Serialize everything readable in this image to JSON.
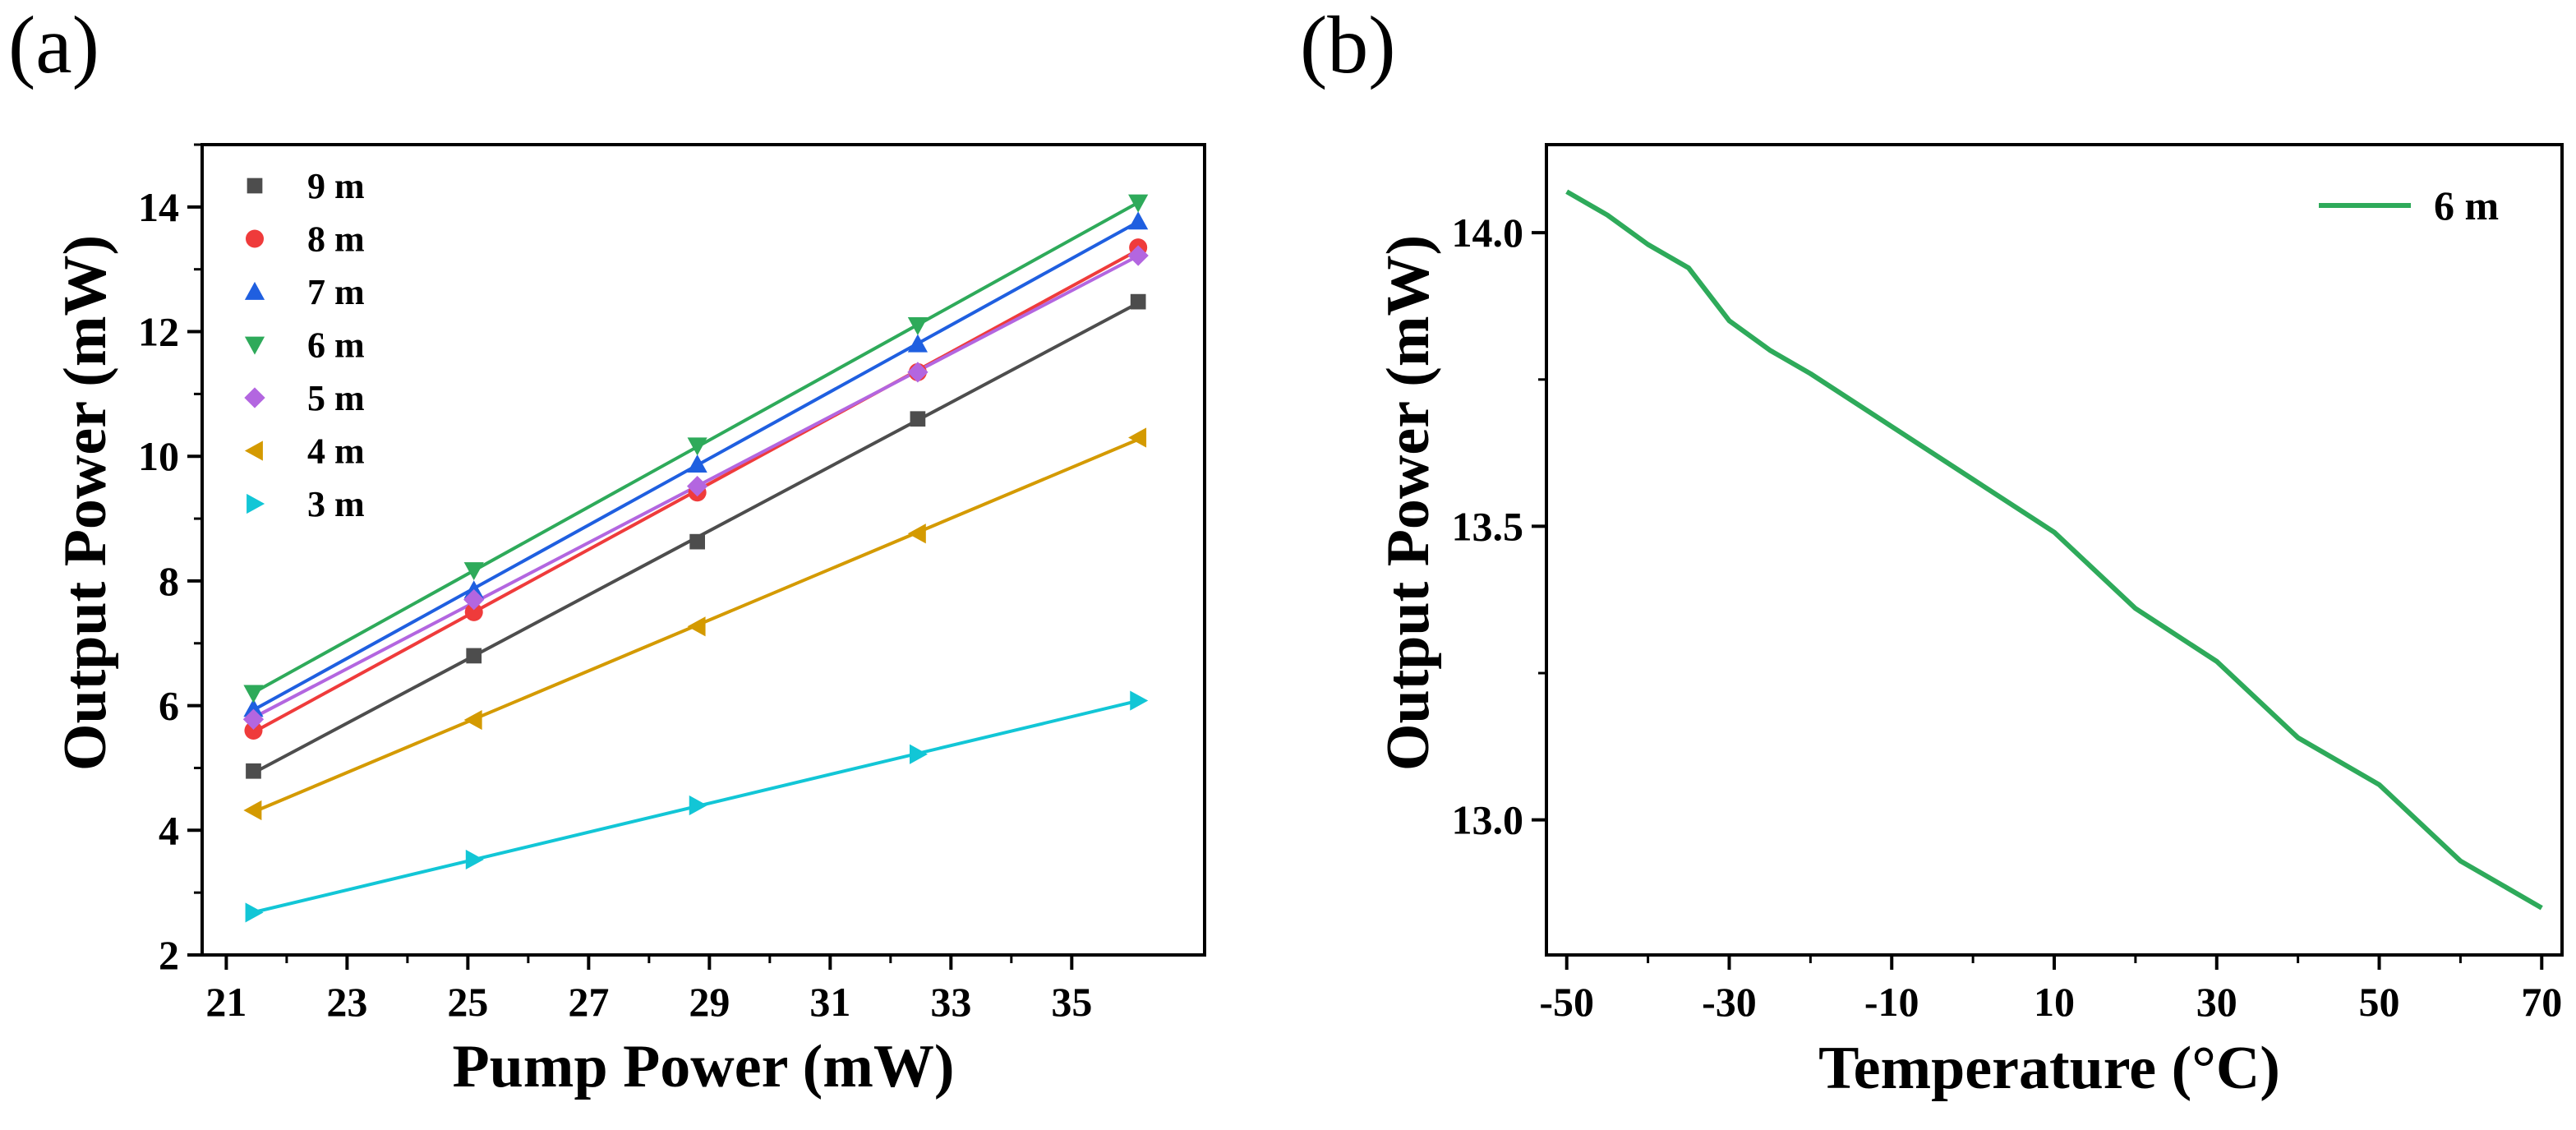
{
  "chart_data": [
    {
      "panel_label": "(a)",
      "type": "scatter",
      "title": "",
      "xlabel": "Pump Power (mW)",
      "ylabel": "Output Power (mW)",
      "xlim": [
        20.6,
        37.2
      ],
      "ylim": [
        2,
        15
      ],
      "xticks": [
        21,
        23,
        25,
        27,
        29,
        31,
        33,
        35
      ],
      "yticks": [
        2,
        4,
        6,
        8,
        10,
        12,
        14
      ],
      "x": [
        21.45,
        25.1,
        28.8,
        32.45,
        36.1
      ],
      "legend_position": "top-left",
      "fit_lines": true,
      "series": [
        {
          "name": "9 m",
          "marker": "square",
          "color": "#4d4d4d",
          "values": [
            4.95,
            6.8,
            8.63,
            10.6,
            12.48
          ]
        },
        {
          "name": "8 m",
          "marker": "circle",
          "color": "#ef3b3b",
          "values": [
            5.6,
            7.5,
            9.42,
            11.35,
            13.35
          ]
        },
        {
          "name": "7 m",
          "marker": "triangle-up",
          "color": "#1f5fe0",
          "values": [
            5.95,
            7.85,
            9.87,
            11.8,
            13.77
          ]
        },
        {
          "name": "6 m",
          "marker": "triangle-down",
          "color": "#2eaa5a",
          "values": [
            6.2,
            8.17,
            10.17,
            12.1,
            14.07
          ]
        },
        {
          "name": "5 m",
          "marker": "diamond",
          "color": "#b366e0",
          "values": [
            5.78,
            7.7,
            9.52,
            11.35,
            13.22
          ]
        },
        {
          "name": "4 m",
          "marker": "triangle-left",
          "color": "#d49a00",
          "values": [
            4.32,
            5.77,
            7.27,
            8.76,
            10.3
          ]
        },
        {
          "name": "3 m",
          "marker": "triangle-right",
          "color": "#12c6d6",
          "values": [
            2.68,
            3.53,
            4.4,
            5.22,
            6.08
          ]
        }
      ]
    },
    {
      "panel_label": "(b)",
      "type": "line",
      "title": "",
      "xlabel": "Temperature (°C)",
      "ylabel": "Output Power (mW)",
      "xlim": [
        -52.5,
        72.5
      ],
      "ylim": [
        12.77,
        14.15
      ],
      "xticks": [
        -50,
        -30,
        -10,
        10,
        30,
        50,
        70
      ],
      "yticks": [
        13.0,
        13.5,
        14.0
      ],
      "ytick_labels": [
        "13.0",
        "13.5",
        "14.0"
      ],
      "legend_position": "top-right",
      "series": [
        {
          "name": "6 m",
          "color": "#2eaa5a",
          "x": [
            -50,
            -45,
            -40,
            -35,
            -30,
            -25,
            -20,
            -10,
            0,
            10,
            20,
            30,
            40,
            50,
            60,
            70
          ],
          "values": [
            14.07,
            14.03,
            13.98,
            13.94,
            13.85,
            13.8,
            13.76,
            13.67,
            13.58,
            13.49,
            13.36,
            13.27,
            13.14,
            13.06,
            12.93,
            12.85
          ]
        }
      ]
    }
  ]
}
